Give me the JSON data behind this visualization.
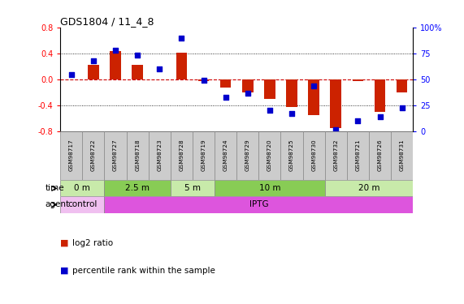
{
  "title": "GDS1804 / 11_4_8",
  "samples": [
    "GSM98717",
    "GSM98722",
    "GSM98727",
    "GSM98718",
    "GSM98723",
    "GSM98728",
    "GSM98719",
    "GSM98724",
    "GSM98729",
    "GSM98720",
    "GSM98725",
    "GSM98730",
    "GSM98732",
    "GSM98721",
    "GSM98726",
    "GSM98731"
  ],
  "log2_ratio": [
    0.0,
    0.22,
    0.44,
    0.22,
    0.0,
    0.41,
    -0.03,
    -0.13,
    -0.2,
    -0.3,
    -0.42,
    -0.55,
    -0.75,
    -0.03,
    -0.5,
    -0.2
  ],
  "pct_rank": [
    55,
    68,
    78,
    73,
    60,
    90,
    49,
    33,
    37,
    20,
    17,
    44,
    2,
    10,
    14,
    23
  ],
  "time_groups": [
    {
      "label": "0 m",
      "start": 0,
      "end": 2,
      "color": "#c8eaaa"
    },
    {
      "label": "2.5 m",
      "start": 2,
      "end": 5,
      "color": "#88cc55"
    },
    {
      "label": "5 m",
      "start": 5,
      "end": 7,
      "color": "#c8eaaa"
    },
    {
      "label": "10 m",
      "start": 7,
      "end": 12,
      "color": "#88cc55"
    },
    {
      "label": "20 m",
      "start": 12,
      "end": 16,
      "color": "#c8eaaa"
    }
  ],
  "agent_groups": [
    {
      "label": "control",
      "start": 0,
      "end": 2,
      "color": "#f0c0f0"
    },
    {
      "label": "IPTG",
      "start": 2,
      "end": 16,
      "color": "#dd55dd"
    }
  ],
  "ylim": [
    -0.8,
    0.8
  ],
  "y2lim": [
    0,
    100
  ],
  "bar_color": "#cc2200",
  "dot_color": "#0000cc",
  "ref_line_color": "#cc0000",
  "dot_line_color": "#aaaaaa",
  "bg_color": "#ffffff",
  "sample_box_color": "#cccccc",
  "y_ticks": [
    -0.8,
    -0.4,
    0.0,
    0.4,
    0.8
  ],
  "y2_ticks": [
    0,
    25,
    50,
    75,
    100
  ]
}
